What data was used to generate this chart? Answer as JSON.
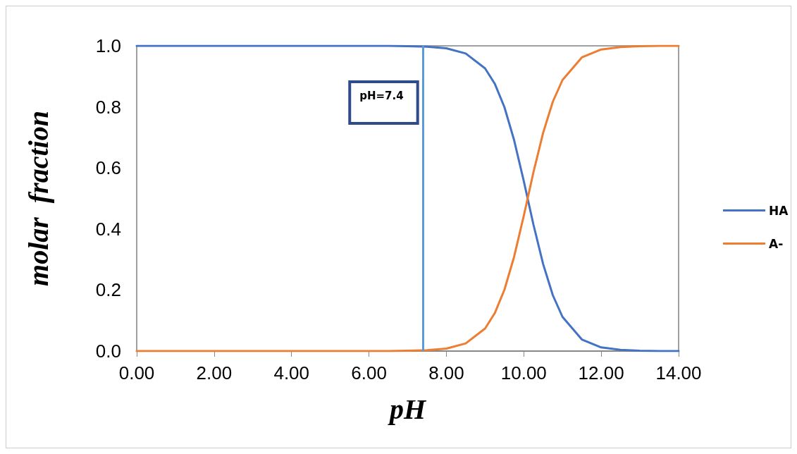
{
  "chart_data": {
    "type": "line",
    "xlabel": "pH",
    "ylabel": "molar  fraction",
    "x": [
      0,
      1,
      2,
      3,
      4,
      5,
      6,
      6.5,
      7,
      7.5,
      8,
      8.5,
      9,
      9.25,
      9.5,
      9.75,
      10,
      10.25,
      10.5,
      10.75,
      11,
      11.5,
      12,
      12.5,
      13,
      13.5,
      14
    ],
    "series": [
      {
        "name": "HA",
        "color": "#4472c4",
        "values": [
          1,
          1,
          1,
          1,
          1,
          1,
          1,
          1,
          0.999,
          0.997,
          0.992,
          0.975,
          0.926,
          0.876,
          0.799,
          0.691,
          0.557,
          0.414,
          0.285,
          0.183,
          0.112,
          0.038,
          0.012,
          0.004,
          0.001,
          0,
          0
        ]
      },
      {
        "name": "A-",
        "color": "#ed7d31",
        "values": [
          0,
          0,
          0,
          0,
          0,
          0,
          0,
          0,
          0.001,
          0.003,
          0.008,
          0.025,
          0.074,
          0.124,
          0.201,
          0.309,
          0.443,
          0.586,
          0.715,
          0.817,
          0.888,
          0.962,
          0.988,
          0.996,
          0.999,
          1,
          1
        ]
      }
    ],
    "xlim": [
      0,
      14
    ],
    "xticks": [
      {
        "value": 0,
        "label": "0.00"
      },
      {
        "value": 2,
        "label": "2.00"
      },
      {
        "value": 4,
        "label": "4.00"
      },
      {
        "value": 6,
        "label": "6.00"
      },
      {
        "value": 8,
        "label": "8.00"
      },
      {
        "value": 10,
        "label": "10.00"
      },
      {
        "value": 12,
        "label": "12.00"
      },
      {
        "value": 14,
        "label": "14.00"
      }
    ],
    "ylim": [
      0,
      1
    ],
    "yticks": [
      {
        "value": 0,
        "label": "0.0"
      },
      {
        "value": 0.2,
        "label": "0.2"
      },
      {
        "value": 0.4,
        "label": "0.4"
      },
      {
        "value": 0.6,
        "label": "0.6"
      },
      {
        "value": 0.8,
        "label": "0.8"
      },
      {
        "value": 1,
        "label": "1.0"
      }
    ],
    "ref_lines": [
      {
        "axis": "x",
        "value": 7.4,
        "label": "pH=7.4",
        "color": "#5b9bd5"
      }
    ],
    "grid": false,
    "legend": "right",
    "marker": "none",
    "line_style": "solid"
  }
}
